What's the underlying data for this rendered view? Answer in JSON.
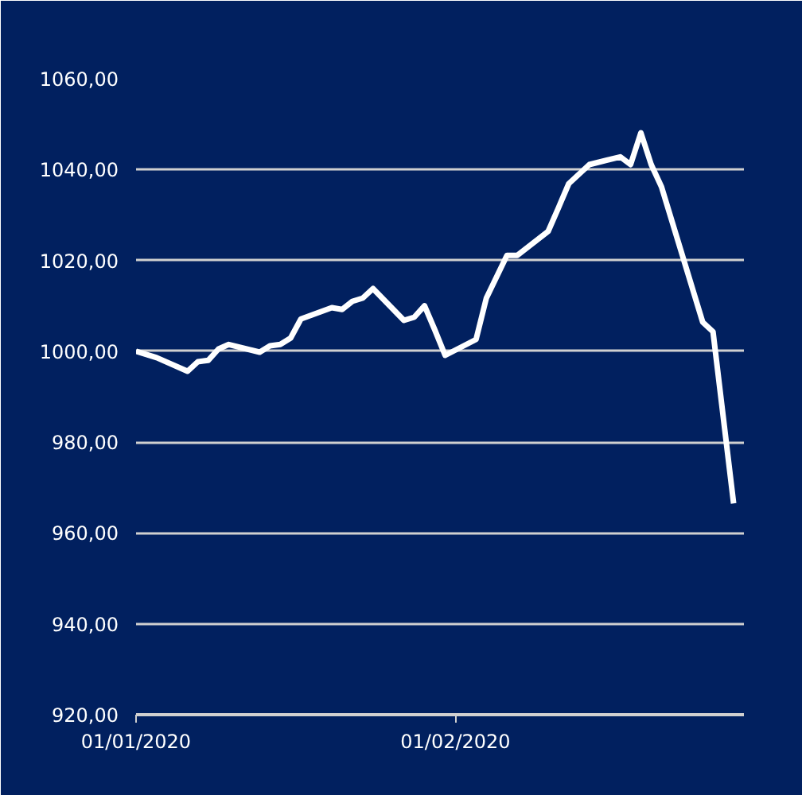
{
  "chart_data": {
    "type": "line",
    "x": [
      "2020-01-01",
      "2020-01-03",
      "2020-01-06",
      "2020-01-07",
      "2020-01-08",
      "2020-01-09",
      "2020-01-10",
      "2020-01-13",
      "2020-01-14",
      "2020-01-15",
      "2020-01-16",
      "2020-01-17",
      "2020-01-20",
      "2020-01-21",
      "2020-01-22",
      "2020-01-23",
      "2020-01-24",
      "2020-01-27",
      "2020-01-28",
      "2020-01-29",
      "2020-01-30",
      "2020-01-31",
      "2020-02-03",
      "2020-02-04",
      "2020-02-06",
      "2020-02-07",
      "2020-02-10",
      "2020-02-11",
      "2020-02-12",
      "2020-02-14",
      "2020-02-17",
      "2020-02-18",
      "2020-02-19",
      "2020-02-20",
      "2020-02-21",
      "2020-02-25",
      "2020-02-26",
      "2020-02-28"
    ],
    "series": [
      {
        "color": "#ffffff",
        "values": [
          1000,
          998.6,
          995.6,
          997.7,
          998.0,
          1000.5,
          1001.5,
          999.8,
          1001.2,
          1001.5,
          1002.9,
          1007.1,
          1009.6,
          1009.2,
          1011,
          1011.7,
          1013.8,
          1006.8,
          1007.5,
          1010,
          1004.7,
          999.1,
          1002.6,
          1011.7,
          1021.1,
          1021.1,
          1026.4,
          1031.6,
          1036.9,
          1041.1,
          1042.8,
          1041.1,
          1048.1,
          1041.1,
          1036.2,
          1006.4,
          1004.3,
          966.5
        ]
      }
    ],
    "xlim": [
      "2020-01-01",
      "2020-02-29"
    ],
    "xticks": [
      {
        "value": "2020-01-01",
        "label": "01/01/2020"
      },
      {
        "value": "2020-02-01",
        "label": "01/02/2020"
      }
    ],
    "ylim": [
      920,
      1060
    ],
    "yticks": [
      {
        "value": 920,
        "label": "920,00"
      },
      {
        "value": 940,
        "label": "940,00"
      },
      {
        "value": 960,
        "label": "960,00"
      },
      {
        "value": 980,
        "label": "980,00"
      },
      {
        "value": 1000,
        "label": "1000,00"
      },
      {
        "value": 1020,
        "label": "1020,00"
      },
      {
        "value": 1040,
        "label": "1040,00"
      },
      {
        "value": 1060,
        "label": "1060,00"
      }
    ],
    "grid": "y",
    "marker": "none",
    "line_style": "solid"
  }
}
